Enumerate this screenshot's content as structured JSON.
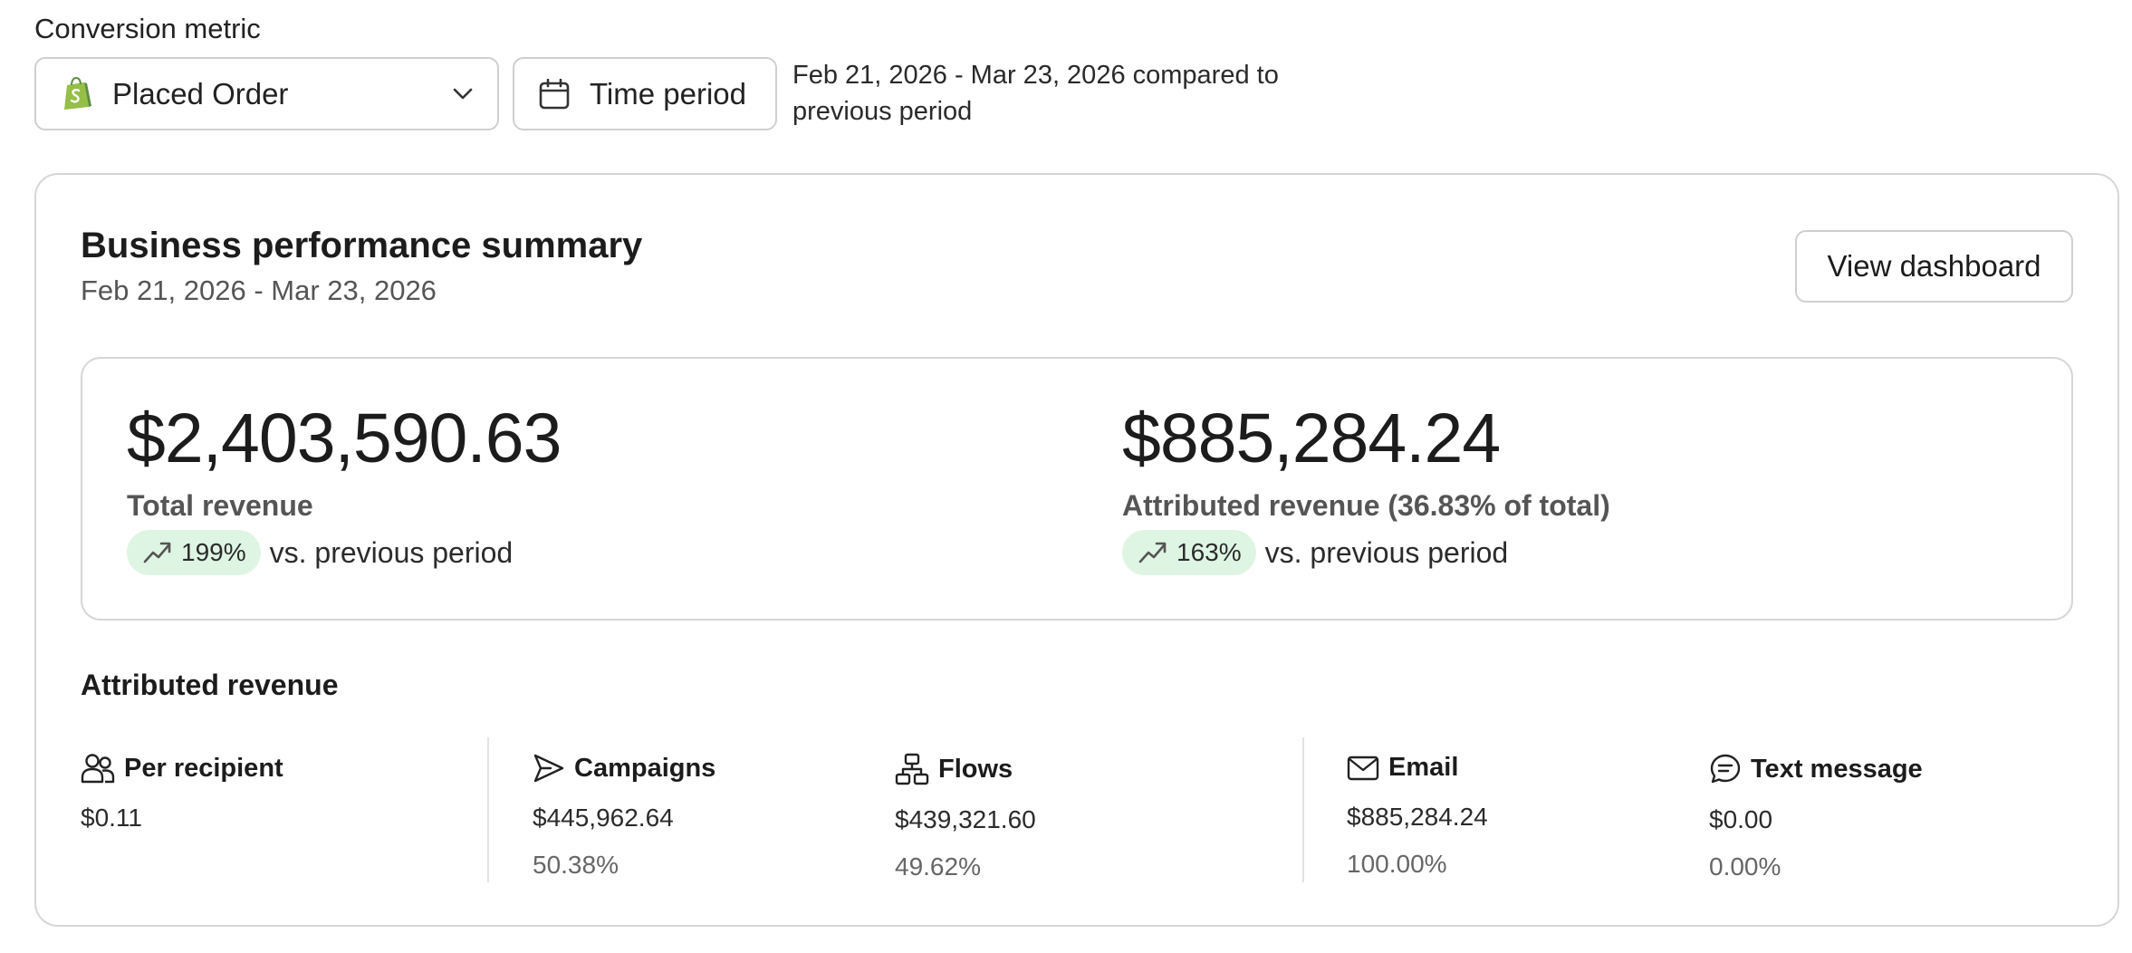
{
  "filters": {
    "metric_label": "Conversion metric",
    "metric_value": "Placed Order",
    "time_button_label": "Time period",
    "period_description": "Feb 21, 2026 - Mar 23, 2026 compared to previous period"
  },
  "summary": {
    "title": "Business performance summary",
    "date_range": "Feb 21, 2026 - Mar 23, 2026",
    "view_dashboard_label": "View dashboard"
  },
  "revenue": {
    "total": {
      "amount": "$2,403,590.63",
      "label": "Total revenue",
      "change": "199%",
      "comparison": "vs. previous period"
    },
    "attributed": {
      "amount": "$885,284.24",
      "label": "Attributed revenue (36.83% of total)",
      "change": "163%",
      "comparison": "vs. previous period"
    }
  },
  "attributed_section": {
    "title": "Attributed revenue",
    "stats": [
      {
        "label": "Per recipient",
        "icon": "people-icon",
        "value": "$0.11",
        "percent": ""
      },
      {
        "label": "Campaigns",
        "icon": "send-icon",
        "value": "$445,962.64",
        "percent": "50.38%"
      },
      {
        "label": "Flows",
        "icon": "flow-icon",
        "value": "$439,321.60",
        "percent": "49.62%"
      },
      {
        "label": "Email",
        "icon": "mail-icon",
        "value": "$885,284.24",
        "percent": "100.00%"
      },
      {
        "label": "Text message",
        "icon": "chat-icon",
        "value": "$0.00",
        "percent": "0.00%"
      }
    ]
  },
  "colors": {
    "positive_pill": "#dff5e3",
    "shopify_green": "#95bf47"
  }
}
